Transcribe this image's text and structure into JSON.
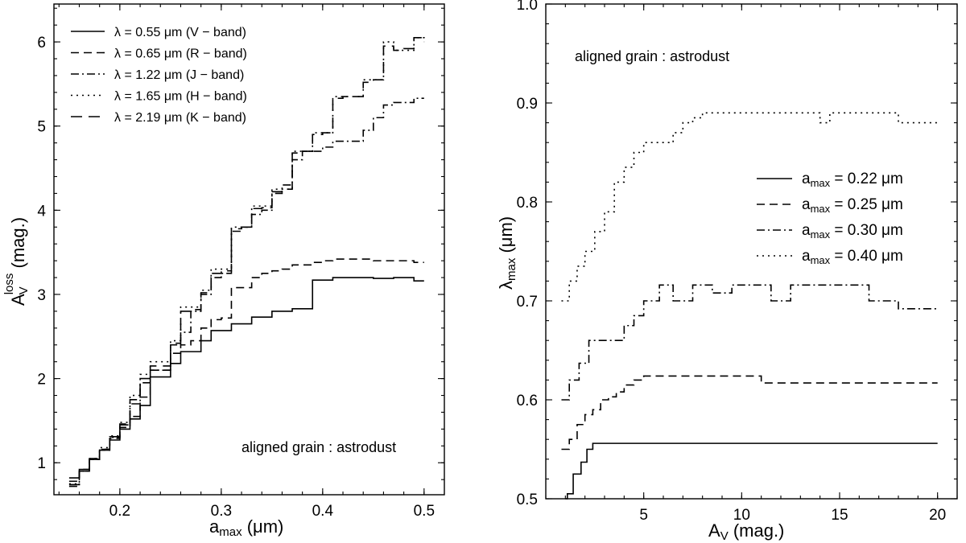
{
  "chart_data": [
    {
      "type": "line",
      "id": "left",
      "xlabel": "a",
      "xlabel_sub": "max",
      "xlabel_unit": " (μm)",
      "ylabel": "A",
      "ylabel_sub": "V",
      "ylabel_sup": "loss",
      "ylabel_unit": " (mag.)",
      "xlim": [
        0.135,
        0.52
      ],
      "ylim": [
        0.62,
        6.45
      ],
      "xticks": [
        0.2,
        0.3,
        0.4,
        0.5
      ],
      "xtick_labels": [
        "0.2",
        "0.3",
        "0.4",
        "0.5"
      ],
      "yticks": [
        1,
        2,
        3,
        4,
        5,
        6
      ],
      "ytick_labels": [
        "1",
        "2",
        "3",
        "4",
        "5",
        "6"
      ],
      "annotation": "aligned grain : astrodust",
      "legend_position": "top-left",
      "series": [
        {
          "name": "λ = 0.55 μm (V − band)",
          "dash": "solid",
          "x": [
            0.15,
            0.16,
            0.17,
            0.18,
            0.19,
            0.2,
            0.21,
            0.22,
            0.23,
            0.24,
            0.25,
            0.26,
            0.27,
            0.28,
            0.29,
            0.3,
            0.31,
            0.32,
            0.33,
            0.34,
            0.35,
            0.36,
            0.37,
            0.38,
            0.39,
            0.4,
            0.41,
            0.42,
            0.43,
            0.44,
            0.45,
            0.46,
            0.47,
            0.48,
            0.49,
            0.5
          ],
          "y": [
            0.82,
            0.92,
            1.04,
            1.15,
            1.27,
            1.4,
            1.52,
            1.68,
            2.02,
            2.02,
            2.18,
            2.32,
            2.32,
            2.45,
            2.57,
            2.57,
            2.65,
            2.65,
            2.73,
            2.73,
            2.8,
            2.8,
            2.83,
            2.83,
            3.17,
            3.17,
            3.2,
            3.2,
            3.2,
            3.2,
            3.19,
            3.19,
            3.2,
            3.2,
            3.16,
            3.16
          ]
        },
        {
          "name": "λ = 0.65 μm (R − band)",
          "dash": "dashed",
          "x": [
            0.15,
            0.16,
            0.17,
            0.18,
            0.19,
            0.2,
            0.21,
            0.22,
            0.23,
            0.24,
            0.25,
            0.26,
            0.27,
            0.28,
            0.29,
            0.3,
            0.31,
            0.32,
            0.33,
            0.34,
            0.35,
            0.36,
            0.37,
            0.38,
            0.39,
            0.4,
            0.41,
            0.42,
            0.43,
            0.44,
            0.45,
            0.46,
            0.47,
            0.48,
            0.49,
            0.5
          ],
          "y": [
            0.78,
            0.92,
            1.04,
            1.16,
            1.29,
            1.42,
            1.55,
            1.78,
            2.1,
            2.1,
            2.3,
            2.4,
            2.45,
            2.6,
            2.7,
            2.72,
            3.08,
            3.08,
            3.2,
            3.25,
            3.28,
            3.3,
            3.35,
            3.35,
            3.38,
            3.4,
            3.42,
            3.42,
            3.42,
            3.42,
            3.4,
            3.4,
            3.4,
            3.4,
            3.38,
            3.38
          ]
        },
        {
          "name": "λ = 1.22 μm (J − band)",
          "dash": "dashdot",
          "x": [
            0.15,
            0.16,
            0.17,
            0.18,
            0.19,
            0.2,
            0.21,
            0.22,
            0.23,
            0.24,
            0.25,
            0.26,
            0.27,
            0.28,
            0.29,
            0.3,
            0.31,
            0.32,
            0.33,
            0.34,
            0.35,
            0.36,
            0.37,
            0.38,
            0.39,
            0.4,
            0.41,
            0.42,
            0.43,
            0.44,
            0.45,
            0.46,
            0.47,
            0.48,
            0.49,
            0.5
          ],
          "y": [
            0.72,
            0.9,
            1.05,
            1.15,
            1.3,
            1.45,
            1.7,
            1.95,
            2.1,
            2.1,
            2.4,
            2.55,
            2.8,
            3.0,
            3.2,
            3.25,
            3.75,
            3.8,
            3.95,
            4.0,
            4.2,
            4.3,
            4.6,
            4.7,
            4.7,
            4.75,
            4.82,
            4.82,
            4.82,
            4.95,
            5.1,
            5.25,
            5.28,
            5.28,
            5.33,
            5.33
          ]
        },
        {
          "name": "λ = 1.65 μm (H − band)",
          "dash": "dotted",
          "x": [
            0.15,
            0.16,
            0.17,
            0.18,
            0.19,
            0.2,
            0.21,
            0.22,
            0.23,
            0.24,
            0.25,
            0.26,
            0.27,
            0.28,
            0.29,
            0.3,
            0.31,
            0.32,
            0.33,
            0.34,
            0.35,
            0.36,
            0.37,
            0.38,
            0.39,
            0.4,
            0.41,
            0.42,
            0.43,
            0.44,
            0.45,
            0.46,
            0.47,
            0.48,
            0.49,
            0.5
          ],
          "y": [
            0.75,
            0.9,
            1.05,
            1.18,
            1.32,
            1.48,
            1.8,
            2.05,
            2.2,
            2.2,
            2.45,
            2.85,
            2.85,
            3.05,
            3.3,
            3.3,
            3.8,
            3.8,
            4.05,
            4.05,
            4.25,
            4.25,
            4.7,
            4.7,
            4.92,
            4.92,
            5.35,
            5.35,
            5.35,
            5.55,
            5.55,
            6.0,
            5.9,
            5.9,
            6.05,
            6.0
          ]
        },
        {
          "name": "λ = 2.19 μm (K − band)",
          "dash": "longdash",
          "x": [
            0.15,
            0.16,
            0.17,
            0.18,
            0.19,
            0.2,
            0.21,
            0.22,
            0.23,
            0.24,
            0.25,
            0.26,
            0.27,
            0.28,
            0.29,
            0.3,
            0.31,
            0.32,
            0.33,
            0.34,
            0.35,
            0.36,
            0.37,
            0.38,
            0.39,
            0.4,
            0.41,
            0.42,
            0.43,
            0.44,
            0.45,
            0.46,
            0.47,
            0.48,
            0.49,
            0.5
          ],
          "y": [
            0.74,
            0.9,
            1.04,
            1.16,
            1.31,
            1.46,
            1.75,
            2.0,
            2.15,
            2.15,
            2.42,
            2.8,
            2.82,
            3.02,
            3.25,
            3.28,
            3.78,
            3.8,
            4.02,
            4.03,
            4.22,
            4.25,
            4.68,
            4.7,
            4.9,
            4.92,
            5.33,
            5.35,
            5.35,
            5.52,
            5.55,
            5.95,
            5.9,
            5.92,
            6.05,
            6.0
          ]
        }
      ]
    },
    {
      "type": "line",
      "id": "right",
      "xlabel": "A",
      "xlabel_sub": "V",
      "xlabel_unit": " (mag.)",
      "ylabel": "λ",
      "ylabel_sub": "max",
      "ylabel_unit": " (μm)",
      "xlim": [
        0,
        21
      ],
      "ylim": [
        0.5,
        1.0
      ],
      "xticks": [
        5,
        10,
        15,
        20
      ],
      "xtick_labels": [
        "5",
        "10",
        "15",
        "20"
      ],
      "yticks": [
        0.5,
        0.6,
        0.7,
        0.8,
        0.9,
        1.0
      ],
      "ytick_labels": [
        "0.5",
        "0.6",
        "0.7",
        "0.8",
        "0.9",
        "1.0"
      ],
      "annotation": "aligned grain : astrodust",
      "legend_position": "middle-right",
      "series": [
        {
          "name": "a",
          "name_sub": "max",
          "name_rest": " = 0.22 μm",
          "dash": "solid",
          "x": [
            1.0,
            1.1,
            1.4,
            1.8,
            2.1,
            2.4,
            20.0
          ],
          "y": [
            0.5,
            0.505,
            0.525,
            0.537,
            0.55,
            0.556,
            0.556
          ]
        },
        {
          "name": "a",
          "name_sub": "max",
          "name_rest": " = 0.25 μm",
          "dash": "dashed",
          "x": [
            0.8,
            1.2,
            1.6,
            2.0,
            2.4,
            2.8,
            3.2,
            3.6,
            4.0,
            4.5,
            5.0,
            6.0,
            11.0,
            20.0
          ],
          "y": [
            0.55,
            0.56,
            0.575,
            0.585,
            0.59,
            0.6,
            0.603,
            0.608,
            0.615,
            0.62,
            0.624,
            0.624,
            0.617,
            0.617
          ]
        },
        {
          "name": "a",
          "name_sub": "max",
          "name_rest": " = 0.30 μm",
          "dash": "dashdot",
          "x": [
            0.8,
            1.2,
            1.7,
            2.2,
            3.0,
            4.0,
            4.5,
            5.0,
            5.8,
            6.5,
            7.5,
            8.5,
            9.5,
            11.0,
            11.5,
            12.5,
            15.5,
            16.5,
            18.0,
            20.0
          ],
          "y": [
            0.6,
            0.62,
            0.637,
            0.66,
            0.66,
            0.675,
            0.685,
            0.7,
            0.716,
            0.7,
            0.716,
            0.708,
            0.716,
            0.716,
            0.7,
            0.716,
            0.716,
            0.7,
            0.692,
            0.692
          ]
        },
        {
          "name": "a",
          "name_sub": "max",
          "name_rest": " = 0.40 μm",
          "dash": "dotted",
          "x": [
            0.8,
            1.2,
            1.6,
            2.0,
            2.5,
            3.0,
            3.5,
            4.0,
            4.5,
            5.0,
            5.5,
            6.5,
            7.0,
            7.5,
            8.0,
            13.5,
            14.0,
            14.5,
            17.0,
            18.0,
            20.0
          ],
          "y": [
            0.7,
            0.72,
            0.735,
            0.75,
            0.77,
            0.79,
            0.82,
            0.835,
            0.85,
            0.86,
            0.86,
            0.87,
            0.88,
            0.885,
            0.89,
            0.89,
            0.88,
            0.89,
            0.89,
            0.88,
            0.88
          ]
        }
      ]
    }
  ]
}
